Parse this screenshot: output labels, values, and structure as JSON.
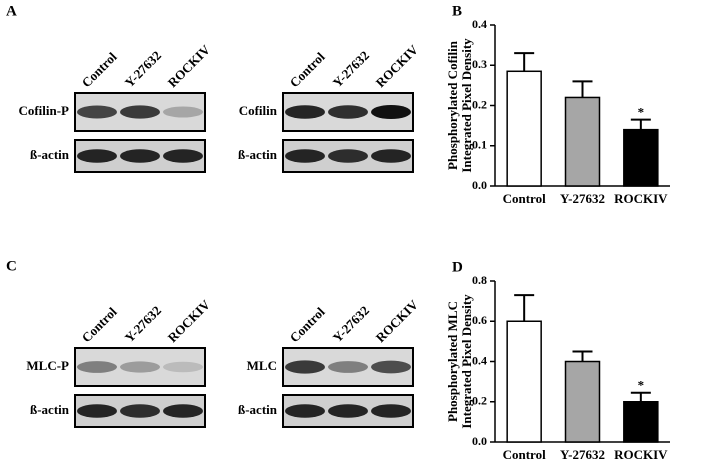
{
  "blots": [
    {
      "panel": "A",
      "groups": [
        {
          "columns": [
            "Control",
            "Y-27632",
            "ROCKIV"
          ],
          "rows": [
            "Cofilin-P",
            "ß-actin"
          ]
        },
        {
          "columns": [
            "Control",
            "Y-27632",
            "ROCKIV"
          ],
          "rows": [
            "Cofilin",
            "ß-actin"
          ]
        }
      ]
    },
    {
      "panel": "C",
      "groups": [
        {
          "columns": [
            "Control",
            "Y-27632",
            "ROCKIV"
          ],
          "rows": [
            "MLC-P",
            "ß-actin"
          ]
        },
        {
          "columns": [
            "Control",
            "Y-27632",
            "ROCKIV"
          ],
          "rows": [
            "MLC",
            "ß-actin"
          ]
        }
      ]
    }
  ],
  "chart_data": [
    {
      "type": "bar",
      "panel": "B",
      "ylabel": [
        "Phosphorylated Cofilin",
        "Integrated Pixel Density"
      ],
      "categories": [
        "Control",
        "Y-27632",
        "ROCKIV"
      ],
      "values": [
        0.285,
        0.22,
        0.14
      ],
      "errors": [
        0.045,
        0.04,
        0.025
      ],
      "annotations": [
        null,
        null,
        "*"
      ],
      "colors": [
        "#ffffff",
        "#a6a6a6",
        "#000000"
      ],
      "ylim": [
        0,
        0.4
      ],
      "yticks": [
        {
          "value": 0,
          "label": "0.0"
        },
        0.1,
        0.2,
        0.3,
        0.4
      ]
    },
    {
      "type": "bar",
      "panel": "D",
      "ylabel": [
        "Phosphorylated MLC",
        "Integrated Pixel Density"
      ],
      "categories": [
        "Control",
        "Y-27632",
        "ROCKIV"
      ],
      "values": [
        0.6,
        0.4,
        0.2
      ],
      "errors": [
        0.13,
        0.05,
        0.045
      ],
      "annotations": [
        null,
        null,
        "*"
      ],
      "colors": [
        "#ffffff",
        "#a6a6a6",
        "#000000"
      ],
      "ylim": [
        0,
        0.8
      ],
      "yticks": [
        {
          "value": 0,
          "label": "0.0"
        },
        0.2,
        0.4,
        0.6,
        0.8
      ]
    }
  ]
}
